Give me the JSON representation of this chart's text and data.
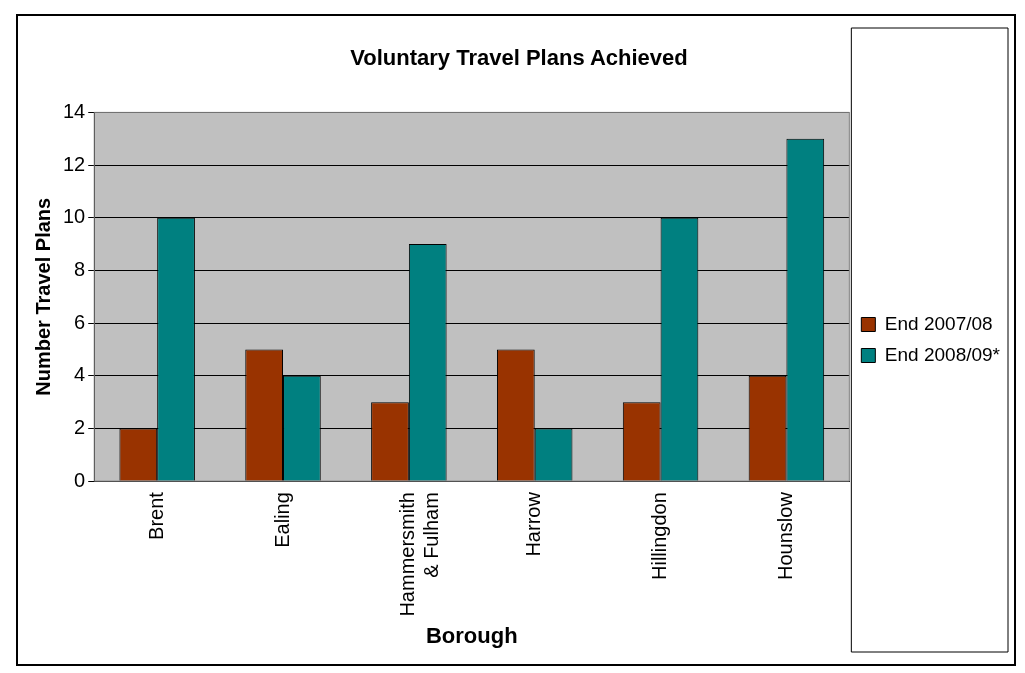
{
  "chart_data": {
    "type": "bar",
    "title": "Voluntary Travel Plans Achieved",
    "xlabel": "Borough",
    "ylabel": "Number Travel Plans",
    "categories": [
      "Brent",
      "Ealing",
      "Hammersmith & Fulham",
      "Harrow",
      "Hillingdon",
      "Hounslow"
    ],
    "series": [
      {
        "name": "End 2007/08",
        "color": "#993300",
        "values": [
          2,
          5,
          3,
          5,
          3,
          4
        ]
      },
      {
        "name": "End 2008/09*",
        "color": "#008080",
        "values": [
          10,
          4,
          9,
          2,
          10,
          13
        ]
      }
    ],
    "ylim": [
      0,
      14
    ],
    "yticks": [
      0,
      2,
      4,
      6,
      8,
      10,
      12,
      14
    ],
    "grid": "y",
    "legend": "right"
  }
}
